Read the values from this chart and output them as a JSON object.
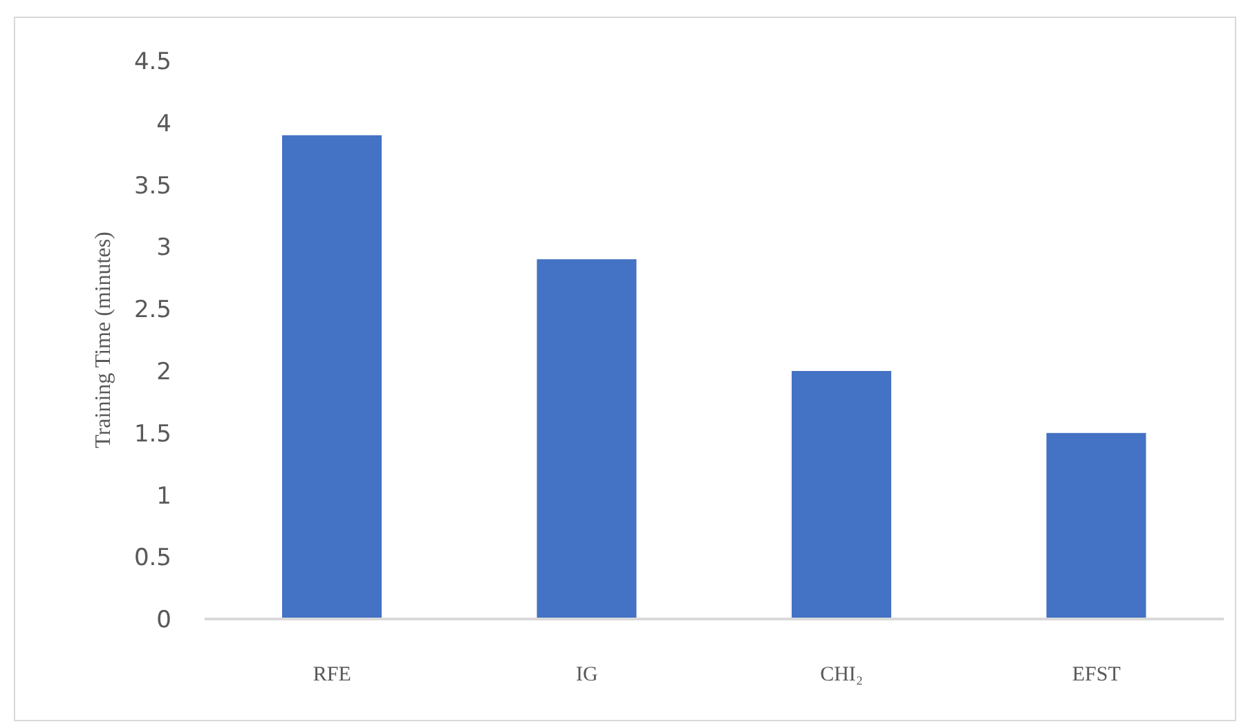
{
  "chart_data": {
    "type": "bar",
    "ylabel": "Training Time (minutes)",
    "categories": [
      "RFE",
      "IG",
      "CHI₂",
      "EFST"
    ],
    "values": [
      3.9,
      2.9,
      2,
      1.5
    ],
    "color": "#4472c4",
    "ylim": [
      0,
      4.5
    ],
    "yticks": [
      0,
      0.5,
      1,
      1.5,
      2,
      2.5,
      3,
      3.5,
      4,
      4.5
    ],
    "grid": false
  }
}
